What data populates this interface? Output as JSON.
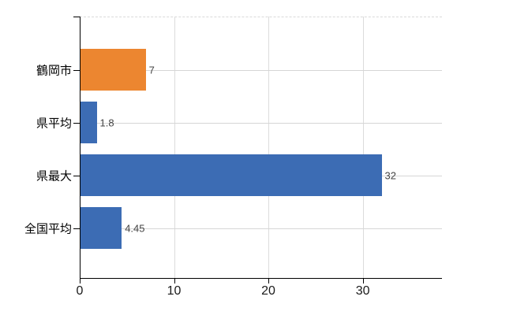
{
  "chart_data": {
    "type": "bar",
    "orientation": "horizontal",
    "title": "",
    "xlabel": "",
    "ylabel": "",
    "categories": [
      "鶴岡市",
      "県平均",
      "県最大",
      "全国平均"
    ],
    "values": [
      7,
      1.8,
      32,
      4.45
    ],
    "value_labels": [
      "7",
      "1.8",
      "32",
      "4.45"
    ],
    "bar_colors": [
      "#EC8630",
      "#3C6CB4",
      "#3C6CB4",
      "#3C6CB4"
    ],
    "x_ticks": [
      0,
      10,
      20,
      30
    ],
    "x_tick_labels": [
      "0",
      "10",
      "20",
      "30"
    ],
    "xlim": [
      0,
      38.4
    ],
    "grid": true,
    "legend": false,
    "colors": {
      "background": "#FFFFFF",
      "axis": "#000000",
      "vertical_gridline": "#DCDCDC",
      "horizontal_gridline": "#D6D6D6",
      "top_gridline_dashed": "#D9D9D9",
      "category_label": "#000000",
      "value_label": "#444444",
      "tick_label": "#1A1A1A"
    }
  }
}
